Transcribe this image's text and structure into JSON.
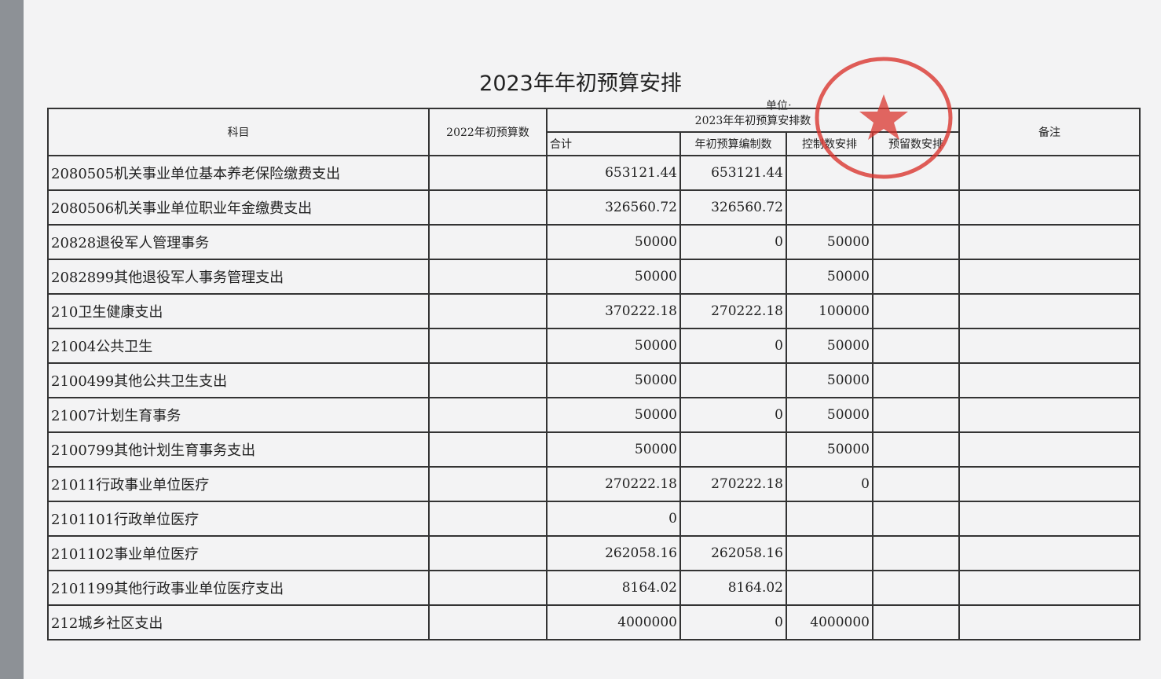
{
  "header": {
    "title": "2023年年初预算安排",
    "unit_label": "单位:"
  },
  "table": {
    "columns": {
      "subject": "科目",
      "prior": "2022年初预算数",
      "group": "2023年年初预算安排数",
      "total": "合计",
      "budget": "年初预算编制数",
      "control": "控制数安排",
      "reserve": "预留数安排",
      "remark": "备注"
    },
    "rows": [
      {
        "subject": "2080505机关事业单位基本养老保险缴费支出",
        "total": "653121.44",
        "budget": "653121.44"
      },
      {
        "subject": "2080506机关事业单位职业年金缴费支出",
        "total": "326560.72",
        "budget": "326560.72"
      },
      {
        "subject": "20828退役军人管理事务",
        "total": "50000",
        "budget": "0",
        "control": "50000"
      },
      {
        "subject": "2082899其他退役军人事务管理支出",
        "total": "50000",
        "control": "50000"
      },
      {
        "subject": "210卫生健康支出",
        "total": "370222.18",
        "budget": "270222.18",
        "control": "100000"
      },
      {
        "subject": "21004公共卫生",
        "total": "50000",
        "budget": "0",
        "control": "50000"
      },
      {
        "subject": "2100499其他公共卫生支出",
        "total": "50000",
        "control": "50000"
      },
      {
        "subject": "21007计划生育事务",
        "total": "50000",
        "budget": "0",
        "control": "50000"
      },
      {
        "subject": "2100799其他计划生育事务支出",
        "total": "50000",
        "control": "50000"
      },
      {
        "subject": "21011行政事业单位医疗",
        "total": "270222.18",
        "budget": "270222.18",
        "control": "0"
      },
      {
        "subject": "2101101行政单位医疗",
        "total": "0"
      },
      {
        "subject": "2101102事业单位医疗",
        "total": "262058.16",
        "budget": "262058.16"
      },
      {
        "subject": "2101199其他行政事业单位医疗支出",
        "total": "8164.02",
        "budget": "8164.02"
      },
      {
        "subject": "212城乡社区支出",
        "total": "4000000",
        "budget": "0",
        "control": "4000000"
      }
    ]
  }
}
